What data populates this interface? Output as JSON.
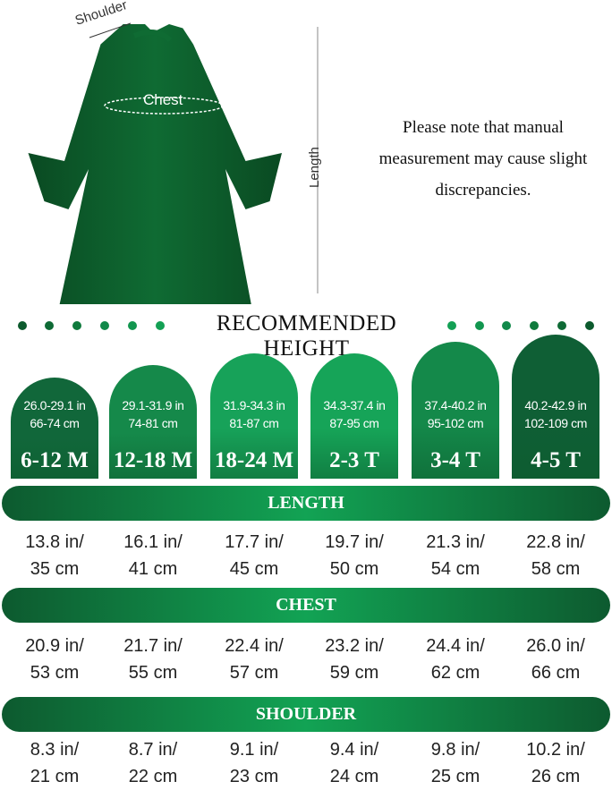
{
  "diagram": {
    "shoulder_label": "Shoulder",
    "chest_label": "Chest",
    "length_label": "Length"
  },
  "note": "Please note that manual measurement may cause slight discrepancies.",
  "recommended_height_title": "RECOMMENDED HEIGHT",
  "sizes": [
    {
      "size": "6-12 M",
      "in": "26.0-29.1 in",
      "cm": "66-74 cm",
      "color": "#11673a"
    },
    {
      "size": "12-18 M",
      "in": "29.1-31.9 in",
      "cm": "74-81 cm",
      "color": "#15894a"
    },
    {
      "size": "18-24 M",
      "in": "31.9-34.3 in",
      "cm": "81-87 cm",
      "color": "#17a259"
    },
    {
      "size": "2-3 T",
      "in": "34.3-37.4 in",
      "cm": "87-95 cm",
      "color": "#16a458"
    },
    {
      "size": "3-4 T",
      "in": "37.4-40.2 in",
      "cm": "95-102 cm",
      "color": "#14894a"
    },
    {
      "size": "4-5 T",
      "in": "40.2-42.9 in",
      "cm": "102-109 cm",
      "color": "#0f5f35"
    }
  ],
  "length": {
    "label": "LENGTH",
    "values": [
      [
        "13.8 in/",
        "35 cm"
      ],
      [
        "16.1 in/",
        "41 cm"
      ],
      [
        "17.7 in/",
        "45 cm"
      ],
      [
        "19.7 in/",
        "50 cm"
      ],
      [
        "21.3 in/",
        "54 cm"
      ],
      [
        "22.8 in/",
        "58 cm"
      ]
    ]
  },
  "chest": {
    "label": "CHEST",
    "values": [
      [
        "20.9 in/",
        "53 cm"
      ],
      [
        "21.7 in/",
        "55 cm"
      ],
      [
        "22.4 in/",
        "57 cm"
      ],
      [
        "23.2 in/",
        "59 cm"
      ],
      [
        "24.4 in/",
        "62 cm"
      ],
      [
        "26.0 in/",
        "66 cm"
      ]
    ]
  },
  "shoulder": {
    "label": "SHOULDER",
    "values": [
      [
        "8.3 in/",
        "21 cm"
      ],
      [
        "8.7 in/",
        "22 cm"
      ],
      [
        "9.1 in/",
        "23 cm"
      ],
      [
        "9.4 in/",
        "24 cm"
      ],
      [
        "9.8 in/",
        "25 cm"
      ],
      [
        "10.2 in/",
        "26 cm"
      ]
    ]
  }
}
